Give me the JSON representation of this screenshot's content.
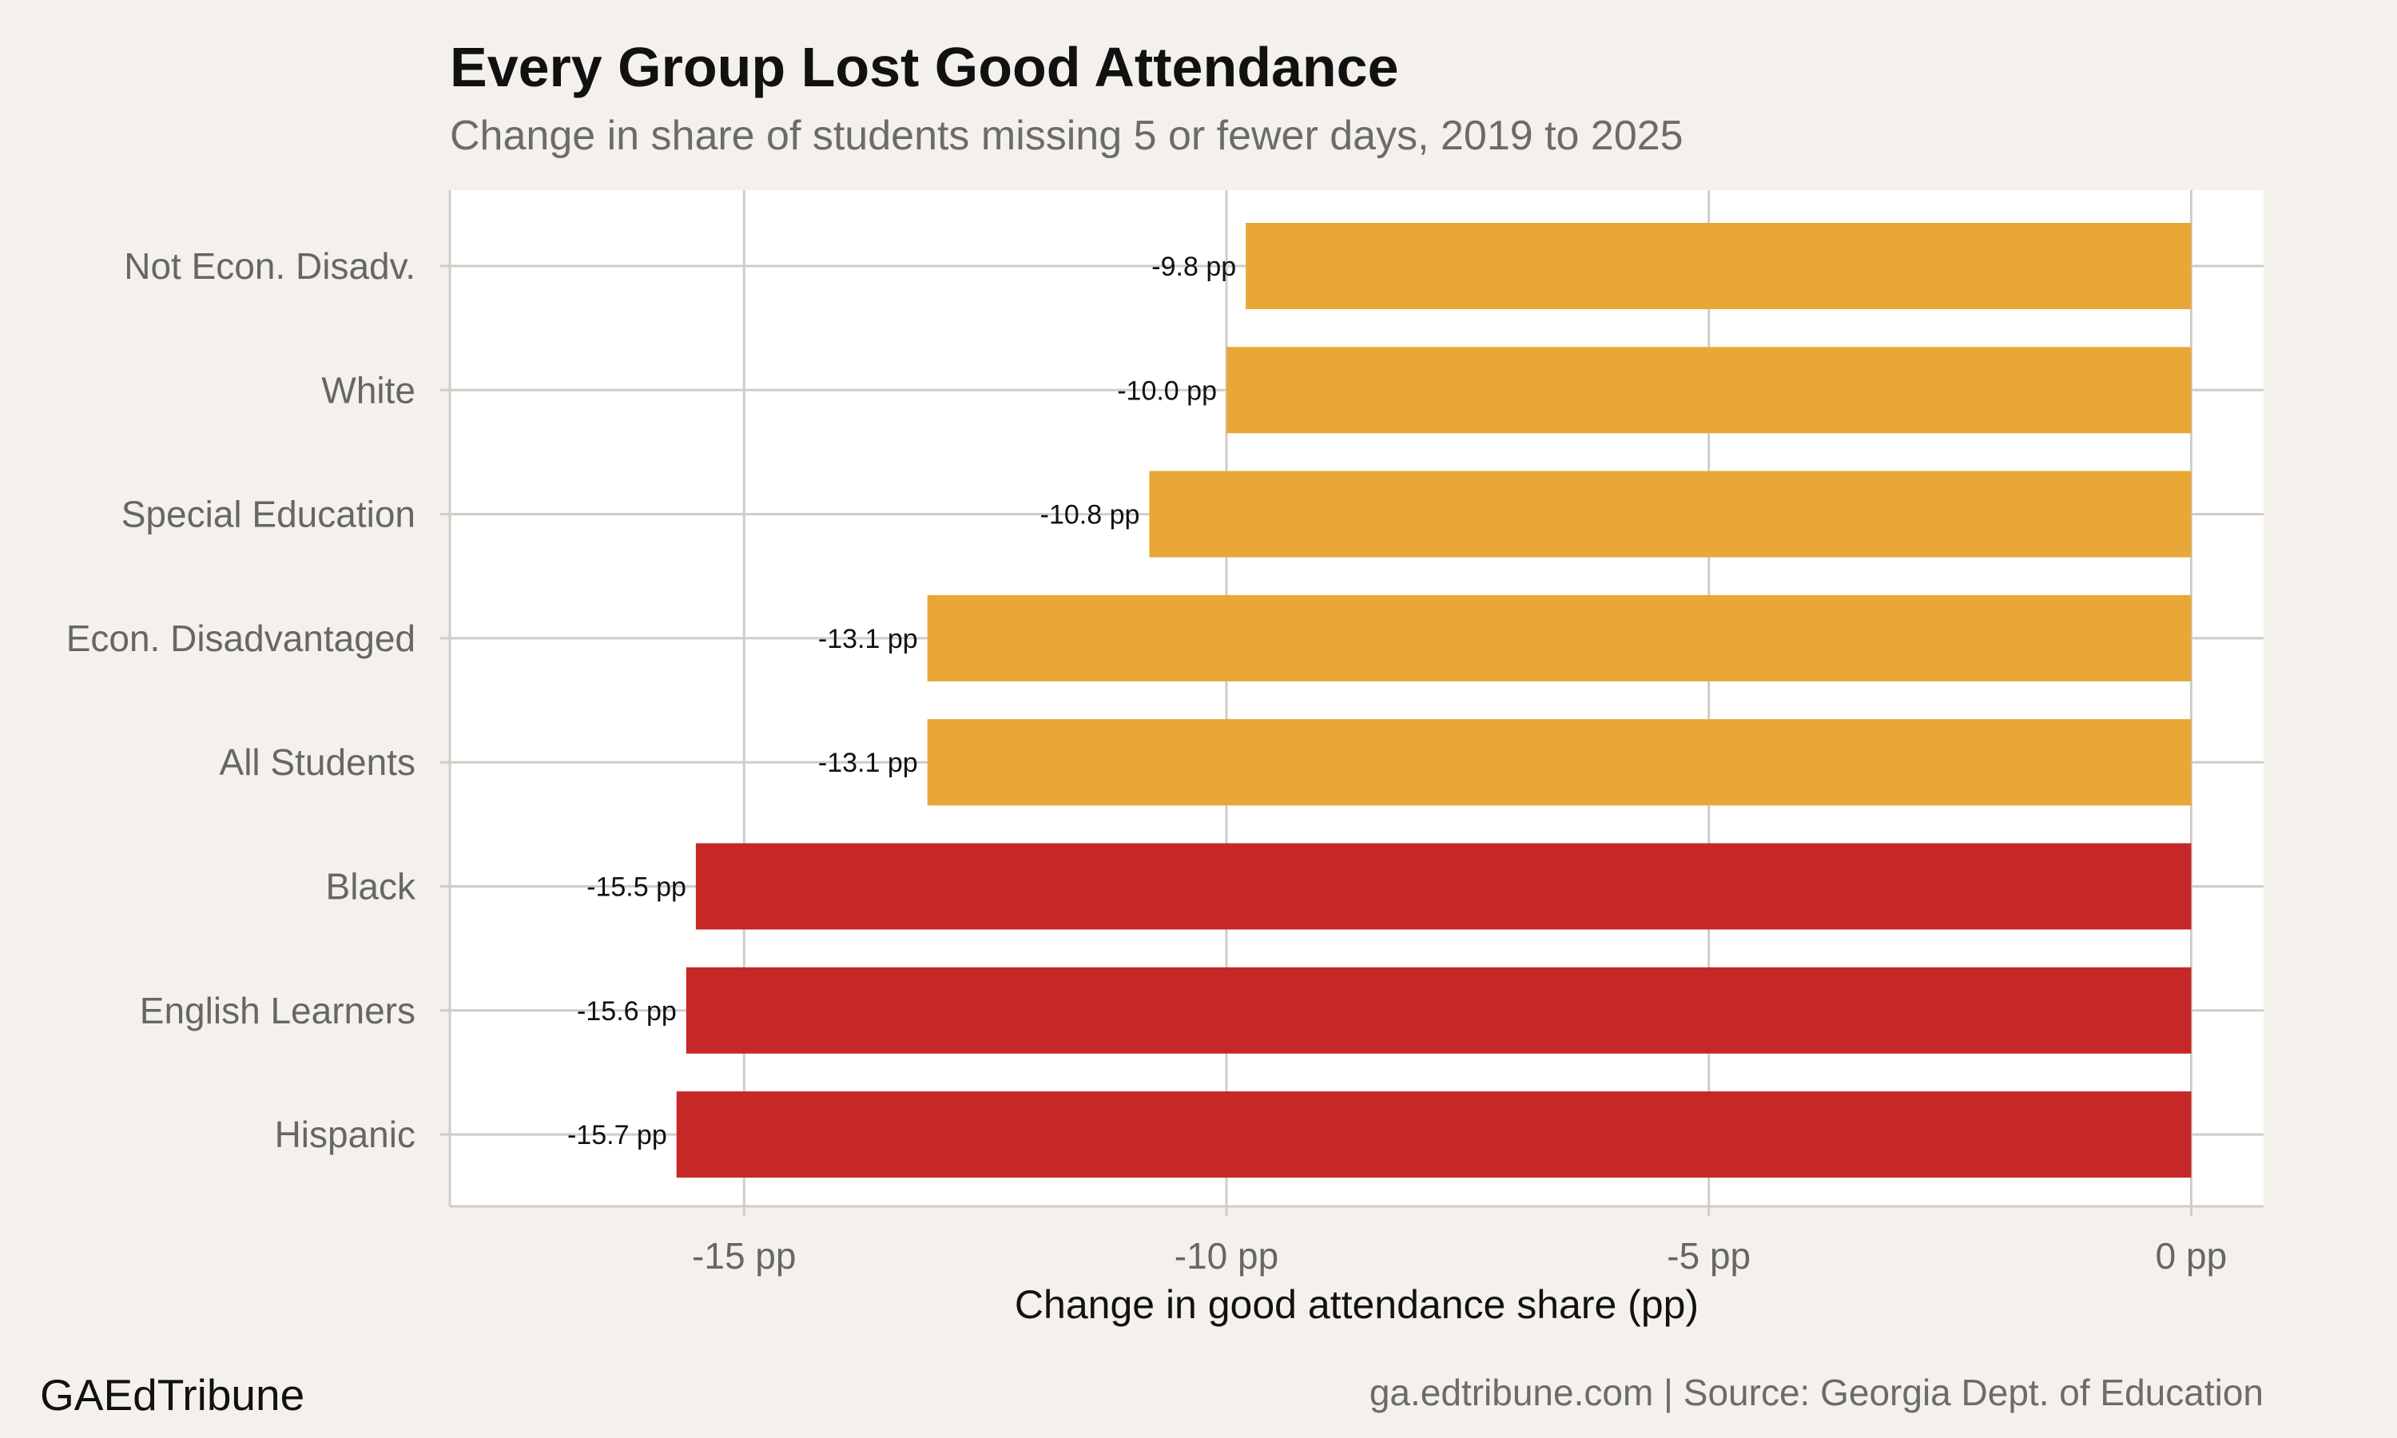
{
  "title": "Every Group Lost Good Attendance",
  "subtitle": "Change in share of students missing 5 or fewer days, 2019 to 2025",
  "brand": "GAEdTribune",
  "source": "ga.edtribune.com | Source: Georgia Dept. of Education",
  "colors": {
    "background": "#f4f1ec",
    "panel": "#ffffff",
    "gridline": "#cfcdc6",
    "orange": "#e8a736",
    "red": "#c62828"
  },
  "chart_data": {
    "type": "bar",
    "orientation": "horizontal",
    "categories": [
      "Not Econ. Disadv.",
      "White",
      "Special Education",
      "Econ. Disadvantaged",
      "All Students",
      "Black",
      "English Learners",
      "Hispanic"
    ],
    "values": [
      -9.8,
      -10.0,
      -10.8,
      -13.1,
      -13.1,
      -15.5,
      -15.6,
      -15.7
    ],
    "value_labels": [
      "-9.8 pp",
      "-10.0 pp",
      "-10.8 pp",
      "-13.1 pp",
      "-13.1 pp",
      "-15.5 pp",
      "-15.6 pp",
      "-15.7 pp"
    ],
    "bar_colors": [
      "#e8a736",
      "#e8a736",
      "#e8a736",
      "#e8a736",
      "#e8a736",
      "#c62828",
      "#c62828",
      "#c62828"
    ],
    "x_ticks": [
      -15,
      -10,
      -5,
      0
    ],
    "x_tick_labels": [
      "-15 pp",
      "-10 pp",
      "-5 pp",
      "0 pp"
    ],
    "xlabel": "Change in good attendance share (pp)",
    "ylabel": "",
    "xlim": [
      -18.05,
      0.75
    ],
    "grid": true,
    "legend": "none"
  }
}
